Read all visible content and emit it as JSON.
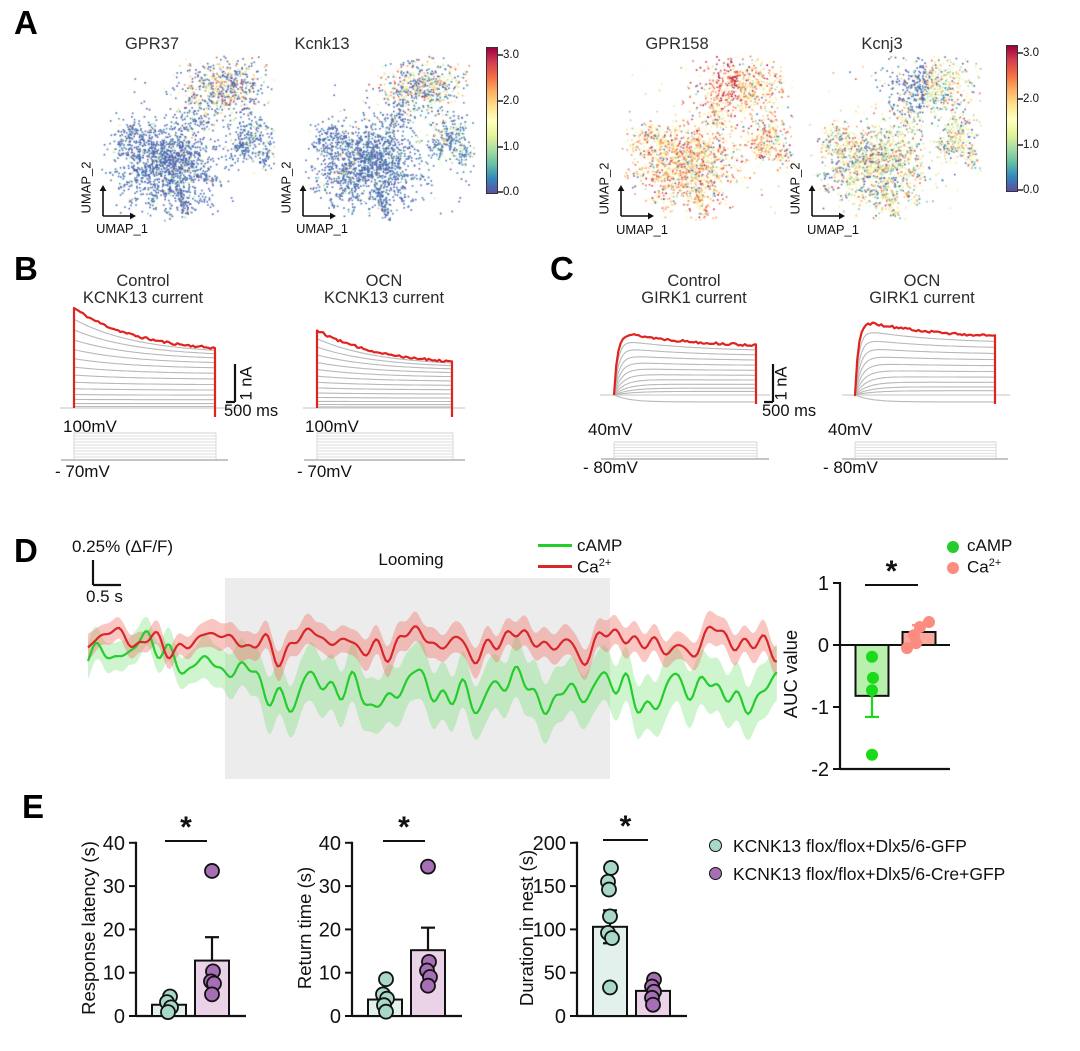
{
  "palette": {
    "spectral": [
      "#5e4fa2",
      "#3288bd",
      "#66c2a5",
      "#abdda4",
      "#e6f598",
      "#ffffbf",
      "#fee08b",
      "#fdae61",
      "#f46d43",
      "#d53e4f",
      "#9e0142"
    ],
    "trace_gray": "#b9b9b9",
    "trace_red": "#e0231e",
    "camp_green": "#23cd2b",
    "ca_red": "#d8262b",
    "camp_band": "rgba(110,225,110,0.33)",
    "ca_band": "rgba(240,120,110,0.42)",
    "looming_bg": "#ececec",
    "auc_green_fill": "#b9f0ae",
    "auc_green_dot": "#1adb1a",
    "auc_pink_fill": "#fba89f",
    "auc_pink_dot": "#fc8b80",
    "teal_fill": "#e2f1eb",
    "teal_dot": "#a7d9c6",
    "purple_fill": "#ead3e9",
    "purple_dot": "#a66fb5",
    "axis": "#111111"
  },
  "panelA": {
    "label": "A",
    "xlabel": "UMAP_1",
    "ylabel": "UMAP_2",
    "colorbar_ticks": [
      "3.0",
      "2.0",
      "1.0",
      "0.0"
    ],
    "plots": [
      {
        "title": "GPR37",
        "profile": "lowA"
      },
      {
        "title": "Kcnk13",
        "profile": "lowB"
      },
      {
        "title": "GPR158",
        "profile": "warm"
      },
      {
        "title": "Kcnj3",
        "profile": "mix"
      }
    ]
  },
  "panelB": {
    "label": "B",
    "scalebar": {
      "v": "1 nA",
      "h": "500 ms"
    },
    "vtop": "100mV",
    "vbottom": "- 70mV",
    "plots": [
      {
        "line1": "Control",
        "line2": "KCNK13 current"
      },
      {
        "line1": "OCN",
        "line2": "KCNK13 current"
      }
    ]
  },
  "panelC": {
    "label": "C",
    "scalebar": {
      "v": "1 nA",
      "h": "500 ms"
    },
    "vtop": "40mV",
    "vbottom": "- 80mV",
    "plots": [
      {
        "line1": "Control",
        "line2": "GIRK1 current"
      },
      {
        "line1": "OCN",
        "line2": "GIRK1 current"
      }
    ]
  },
  "panelD": {
    "label": "D",
    "scale_v": "0.25% (ΔF/F)",
    "scale_h": "0.5 s",
    "looming": "Looming",
    "legend": {
      "camp": "cAMP",
      "ca_base": "Ca",
      "ca_sup": "2+"
    },
    "auc": {
      "ylabel": "AUC value",
      "yticks": [
        1,
        0,
        -1,
        -2
      ],
      "sig": "*",
      "bars": [
        {
          "name": "cAMP",
          "value": -0.82,
          "err": 0.34,
          "dots": [
            -0.19,
            -0.53,
            -0.73,
            -1.77
          ]
        },
        {
          "name": "Ca2+",
          "value": 0.21,
          "err": 0.11,
          "dots": [
            0.37,
            0.29,
            0.16,
            0.03,
            -0.05
          ]
        }
      ]
    }
  },
  "panelE": {
    "label": "E",
    "charts": [
      {
        "ylabel": "Response latency (s)",
        "yticks": [
          40,
          30,
          20,
          10,
          0
        ],
        "sig": "*",
        "bars": [
          {
            "value": 2.6,
            "err": 0.9,
            "dots": [
              4.5,
              3.2,
              2,
              0.9
            ]
          },
          {
            "value": 12.8,
            "err": 5.4,
            "dots": [
              33.5,
              10.3,
              8,
              7.5,
              5
            ]
          }
        ]
      },
      {
        "ylabel": "Return time (s)",
        "yticks": [
          40,
          30,
          20,
          10,
          0
        ],
        "sig": "*",
        "bars": [
          {
            "value": 3.8,
            "err": 1.3,
            "dots": [
              8.5,
              5,
              4,
              2.5,
              1
            ]
          },
          {
            "value": 15.2,
            "err": 5.2,
            "dots": [
              34.5,
              12.5,
              10.5,
              9,
              7
            ]
          }
        ]
      },
      {
        "ylabel": "Duration in nest (s)",
        "yticks": [
          200,
          150,
          100,
          50,
          0
        ],
        "sig": "*",
        "bars": [
          {
            "value": 103,
            "err": 19,
            "dots": [
              171,
              155,
              146,
              115,
              96,
              90,
              33
            ]
          },
          {
            "value": 29,
            "err": 5,
            "dots": [
              42,
              34,
              28,
              21,
              13
            ]
          }
        ]
      }
    ],
    "legend": [
      {
        "label": "KCNK13 flox/flox+Dlx5/6-GFP"
      },
      {
        "label": "KCNK13 flox/flox+Dlx5/6-Cre+GFP"
      }
    ]
  }
}
